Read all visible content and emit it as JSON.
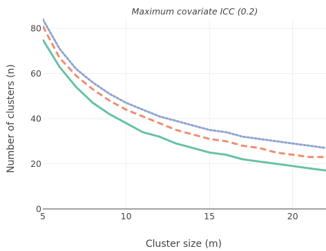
{
  "chart_data": {
    "type": "line",
    "title": "Maximum covariate ICC (0.2)",
    "xlabel": "Cluster size (m)",
    "ylabel": "Number of clusters (n)",
    "xlim": [
      5,
      22
    ],
    "ylim": [
      0,
      84
    ],
    "x_ticks": [
      5,
      10,
      15,
      20
    ],
    "y_ticks": [
      0,
      20,
      40,
      60,
      80
    ],
    "grid": true,
    "x": [
      5,
      6,
      7,
      8,
      9,
      10,
      11,
      12,
      13,
      14,
      15,
      16,
      17,
      18,
      19,
      20,
      21,
      22
    ],
    "series": [
      {
        "color": "#8fa3d1",
        "dash": "dotted",
        "values": [
          84,
          71,
          62,
          56,
          51,
          47,
          44,
          41,
          39,
          37,
          35,
          34,
          32,
          31,
          30,
          29,
          28,
          27
        ]
      },
      {
        "color": "#f08c6e",
        "dash": "dashed",
        "values": [
          81,
          67,
          59,
          53,
          48,
          44,
          41,
          38,
          35,
          33,
          31,
          30,
          28,
          27,
          25,
          24,
          23,
          23
        ]
      },
      {
        "color": "#66c2a3",
        "dash": "solid",
        "values": [
          75,
          63,
          54,
          47,
          42,
          38,
          34,
          32,
          29,
          27,
          25,
          24,
          22,
          21,
          20,
          19,
          18,
          17
        ]
      }
    ]
  }
}
